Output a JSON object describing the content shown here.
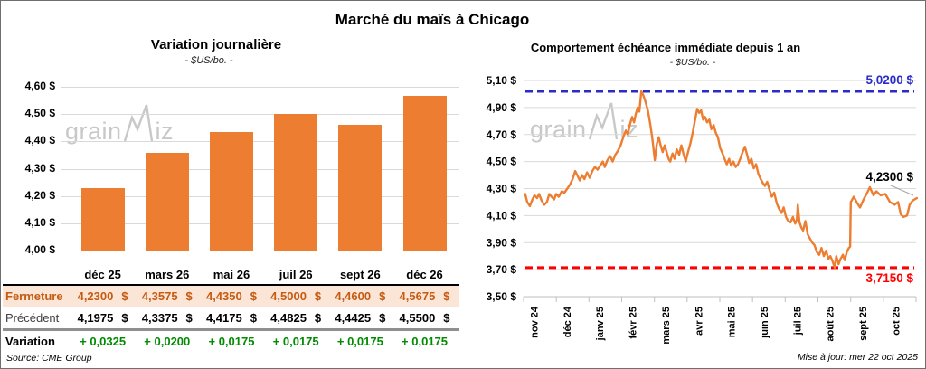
{
  "page": {
    "title": "Marché du maïs à Chicago",
    "source": "Source: CME Group",
    "updated": "Mise à jour: mer 22 oct 2025",
    "watermark": {
      "pre": "grain",
      "post": "iz"
    }
  },
  "colors": {
    "orange": "#ED7D31",
    "dark_orange": "#C55A11",
    "peach": "#FBE5D6",
    "green": "#008B00",
    "blue": "#2B2BC8",
    "red": "#FF0000",
    "grid": "#D9D9D9",
    "axis": "#BFBFBF",
    "watermark": "#C8C8C8"
  },
  "chart_data": [
    {
      "type": "bar",
      "title": "Variation journalière",
      "subtitle": "- $US/bo. -",
      "ylabel": "$US/bo.",
      "categories": [
        "déc 25",
        "mars 26",
        "mai 26",
        "juil 26",
        "sept 26",
        "déc 26"
      ],
      "values": [
        4.23,
        4.3575,
        4.435,
        4.5,
        4.46,
        4.5675
      ],
      "ylim": [
        4.0,
        4.6
      ],
      "ytick_step": 0.1,
      "ytick_labels": [
        "4,60 $",
        "4,50 $",
        "4,40 $",
        "4,30 $",
        "4,20 $",
        "4,10 $",
        "4,00 $"
      ],
      "grid": true,
      "bar_color": "#ED7D31",
      "table": {
        "rows": [
          {
            "label": "Fermeture",
            "suffix": "$",
            "values": [
              "4,2300",
              "4,3575",
              "4,4350",
              "4,5000",
              "4,4600",
              "4,5675"
            ]
          },
          {
            "label": "Précédent",
            "suffix": "$",
            "values": [
              "4,1975",
              "4,3375",
              "4,4175",
              "4,4825",
              "4,4425",
              "4,5500"
            ]
          },
          {
            "label": "Variation",
            "suffix": "",
            "values": [
              "+ 0,0325",
              "+ 0,0200",
              "+ 0,0175",
              "+ 0,0175",
              "+ 0,0175",
              "+ 0,0175"
            ]
          }
        ]
      }
    },
    {
      "type": "line",
      "title": "Comportement échéance immédiate depuis 1 an",
      "subtitle": "- $US/bo. -",
      "ylabel": "$US/bo.",
      "x_tick_labels": [
        "nov 24",
        "déc 24",
        "janv 25",
        "févr 25",
        "mars 25",
        "avr 25",
        "mai 25",
        "juin 25",
        "juil 25",
        "août 25",
        "sept 25",
        "oct 25"
      ],
      "ytick_labels": [
        "5,10 $",
        "4,90 $",
        "4,70 $",
        "4,50 $",
        "4,30 $",
        "4,10 $",
        "3,90 $",
        "3,70 $",
        "3,50 $"
      ],
      "ylim": [
        3.5,
        5.1
      ],
      "grid": true,
      "ref_lines": [
        {
          "value": 5.02,
          "label": "5,0200 $",
          "color": "#2B2BC8",
          "style": "dashed"
        },
        {
          "value": 3.715,
          "label": "3,7150 $",
          "color": "#FF0000",
          "style": "dashed"
        }
      ],
      "last_point_label": "4,2300 $",
      "series": [
        {
          "name": "échéance immédiate",
          "color": "#ED7D31",
          "points": [
            [
              -0.28,
              4.26
            ],
            [
              -0.22,
              4.2
            ],
            [
              -0.14,
              4.17
            ],
            [
              -0.06,
              4.22
            ],
            [
              0.0,
              4.25
            ],
            [
              0.08,
              4.23
            ],
            [
              0.14,
              4.26
            ],
            [
              0.22,
              4.21
            ],
            [
              0.3,
              4.18
            ],
            [
              0.38,
              4.2
            ],
            [
              0.45,
              4.26
            ],
            [
              0.52,
              4.24
            ],
            [
              0.6,
              4.22
            ],
            [
              0.66,
              4.26
            ],
            [
              0.74,
              4.24
            ],
            [
              0.83,
              4.28
            ],
            [
              0.91,
              4.27
            ],
            [
              1.0,
              4.3
            ],
            [
              1.08,
              4.33
            ],
            [
              1.16,
              4.37
            ],
            [
              1.24,
              4.43
            ],
            [
              1.3,
              4.4
            ],
            [
              1.38,
              4.36
            ],
            [
              1.45,
              4.4
            ],
            [
              1.52,
              4.37
            ],
            [
              1.6,
              4.42
            ],
            [
              1.68,
              4.38
            ],
            [
              1.76,
              4.43
            ],
            [
              1.84,
              4.46
            ],
            [
              1.92,
              4.44
            ],
            [
              2.0,
              4.47
            ],
            [
              2.08,
              4.5
            ],
            [
              2.14,
              4.46
            ],
            [
              2.22,
              4.51
            ],
            [
              2.3,
              4.54
            ],
            [
              2.38,
              4.5
            ],
            [
              2.46,
              4.55
            ],
            [
              2.54,
              4.58
            ],
            [
              2.62,
              4.62
            ],
            [
              2.7,
              4.68
            ],
            [
              2.78,
              4.73
            ],
            [
              2.84,
              4.7
            ],
            [
              2.9,
              4.77
            ],
            [
              2.97,
              4.83
            ],
            [
              3.03,
              4.79
            ],
            [
              3.08,
              4.85
            ],
            [
              3.14,
              4.9
            ],
            [
              3.19,
              4.87
            ],
            [
              3.25,
              5.02
            ],
            [
              3.31,
              4.99
            ],
            [
              3.38,
              4.94
            ],
            [
              3.45,
              4.88
            ],
            [
              3.52,
              4.78
            ],
            [
              3.58,
              4.68
            ],
            [
              3.62,
              4.6
            ],
            [
              3.66,
              4.51
            ],
            [
              3.72,
              4.63
            ],
            [
              3.78,
              4.68
            ],
            [
              3.84,
              4.62
            ],
            [
              3.9,
              4.57
            ],
            [
              3.96,
              4.62
            ],
            [
              4.02,
              4.57
            ],
            [
              4.08,
              4.52
            ],
            [
              4.13,
              4.5
            ],
            [
              4.2,
              4.56
            ],
            [
              4.26,
              4.52
            ],
            [
              4.33,
              4.59
            ],
            [
              4.4,
              4.55
            ],
            [
              4.47,
              4.62
            ],
            [
              4.53,
              4.56
            ],
            [
              4.6,
              4.5
            ],
            [
              4.67,
              4.57
            ],
            [
              4.74,
              4.63
            ],
            [
              4.81,
              4.71
            ],
            [
              4.88,
              4.8
            ],
            [
              4.95,
              4.89
            ],
            [
              5.01,
              4.86
            ],
            [
              5.07,
              4.88
            ],
            [
              5.13,
              4.81
            ],
            [
              5.19,
              4.83
            ],
            [
              5.25,
              4.79
            ],
            [
              5.32,
              4.81
            ],
            [
              5.38,
              4.74
            ],
            [
              5.45,
              4.77
            ],
            [
              5.52,
              4.71
            ],
            [
              5.58,
              4.68
            ],
            [
              5.65,
              4.6
            ],
            [
              5.72,
              4.56
            ],
            [
              5.78,
              4.52
            ],
            [
              5.85,
              4.48
            ],
            [
              5.92,
              4.52
            ],
            [
              5.98,
              4.47
            ],
            [
              6.05,
              4.5
            ],
            [
              6.12,
              4.46
            ],
            [
              6.19,
              4.48
            ],
            [
              6.26,
              4.52
            ],
            [
              6.33,
              4.57
            ],
            [
              6.4,
              4.61
            ],
            [
              6.47,
              4.55
            ],
            [
              6.53,
              4.49
            ],
            [
              6.6,
              4.52
            ],
            [
              6.67,
              4.45
            ],
            [
              6.74,
              4.48
            ],
            [
              6.81,
              4.41
            ],
            [
              6.88,
              4.37
            ],
            [
              6.95,
              4.34
            ],
            [
              7.01,
              4.32
            ],
            [
              7.08,
              4.35
            ],
            [
              7.15,
              4.29
            ],
            [
              7.22,
              4.24
            ],
            [
              7.29,
              4.27
            ],
            [
              7.37,
              4.19
            ],
            [
              7.44,
              4.15
            ],
            [
              7.51,
              4.12
            ],
            [
              7.58,
              4.16
            ],
            [
              7.65,
              4.09
            ],
            [
              7.72,
              4.06
            ],
            [
              7.79,
              4.05
            ],
            [
              7.86,
              4.09
            ],
            [
              7.93,
              4.04
            ],
            [
              7.98,
              4.07
            ],
            [
              8.01,
              4.18
            ],
            [
              8.06,
              4.05
            ],
            [
              8.12,
              4.01
            ],
            [
              8.17,
              3.99
            ],
            [
              8.24,
              4.06
            ],
            [
              8.31,
              3.96
            ],
            [
              8.38,
              3.93
            ],
            [
              8.45,
              3.9
            ],
            [
              8.52,
              3.88
            ],
            [
              8.59,
              3.83
            ],
            [
              8.66,
              3.81
            ],
            [
              8.73,
              3.86
            ],
            [
              8.8,
              3.8
            ],
            [
              8.87,
              3.84
            ],
            [
              8.94,
              3.78
            ],
            [
              9.0,
              3.8
            ],
            [
              9.07,
              3.76
            ],
            [
              9.13,
              3.715
            ],
            [
              9.18,
              3.8
            ],
            [
              9.25,
              3.74
            ],
            [
              9.31,
              3.78
            ],
            [
              9.38,
              3.81
            ],
            [
              9.44,
              3.77
            ],
            [
              9.5,
              3.83
            ],
            [
              9.56,
              3.86
            ],
            [
              9.6,
              3.87
            ],
            [
              9.62,
              4.2
            ],
            [
              9.71,
              4.24
            ],
            [
              9.82,
              4.19
            ],
            [
              9.9,
              4.16
            ],
            [
              10.01,
              4.22
            ],
            [
              10.12,
              4.27
            ],
            [
              10.2,
              4.31
            ],
            [
              10.31,
              4.25
            ],
            [
              10.4,
              4.28
            ],
            [
              10.53,
              4.25
            ],
            [
              10.67,
              4.26
            ],
            [
              10.81,
              4.2
            ],
            [
              10.95,
              4.18
            ],
            [
              11.06,
              4.2
            ],
            [
              11.14,
              4.11
            ],
            [
              11.22,
              4.09
            ],
            [
              11.33,
              4.1
            ],
            [
              11.41,
              4.18
            ],
            [
              11.5,
              4.21
            ],
            [
              11.63,
              4.23
            ]
          ]
        }
      ]
    }
  ]
}
